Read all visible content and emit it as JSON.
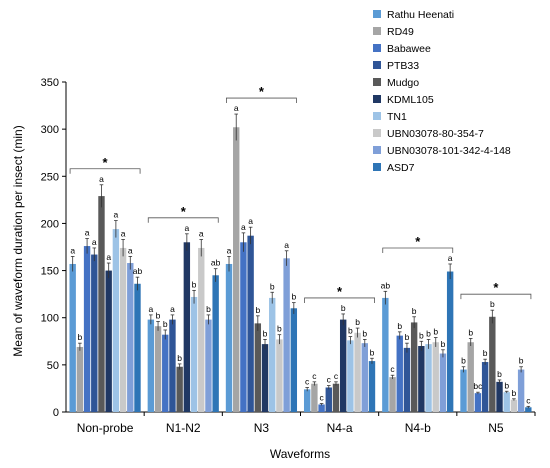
{
  "chart_data": {
    "type": "bar",
    "xlabel": "Waveforms",
    "ylabel": "Mean of waveform duration per insect (min)",
    "ylim": [
      0,
      350
    ],
    "yticks": [
      0,
      50,
      100,
      150,
      200,
      250,
      300,
      350
    ],
    "grid": false,
    "legend_position": "top-right",
    "significance_marker": "*",
    "categories": [
      "Non-probe",
      "N1-N2",
      "N3",
      "N4-a",
      "N4-b",
      "N5"
    ],
    "series": [
      {
        "name": "Rathu Heenati",
        "color": "#5b9bd5",
        "values": [
          157,
          98,
          157,
          24,
          121,
          45
        ],
        "errors": [
          8,
          5,
          8,
          2,
          7,
          3
        ],
        "letters": [
          "a",
          "a",
          "a",
          "c",
          "ab",
          "b"
        ]
      },
      {
        "name": "RD49",
        "color": "#a5a5a5",
        "values": [
          69,
          91,
          302,
          30,
          37,
          74
        ],
        "errors": [
          4,
          5,
          14,
          2,
          2,
          4
        ],
        "letters": [
          "b",
          "b",
          "a",
          "c",
          "c",
          "b"
        ]
      },
      {
        "name": "Babawee",
        "color": "#4472c4",
        "values": [
          176,
          82,
          180,
          8,
          81,
          20
        ],
        "errors": [
          8,
          5,
          10,
          1,
          4,
          1
        ],
        "letters": [
          "a",
          "b",
          "a",
          "c",
          "b",
          "bc"
        ]
      },
      {
        "name": "PTB33",
        "color": "#2f5597",
        "values": [
          167,
          98,
          187,
          26,
          68,
          53
        ],
        "errors": [
          7,
          5,
          9,
          2,
          5,
          3
        ],
        "letters": [
          "a",
          "a",
          "a",
          "c",
          "b",
          "b"
        ]
      },
      {
        "name": "Mudgo",
        "color": "#595959",
        "values": [
          229,
          48,
          94,
          30,
          95,
          101
        ],
        "errors": [
          12,
          3,
          8,
          2,
          6,
          7
        ],
        "letters": [
          "a",
          "b",
          "b",
          "c",
          "b",
          "b"
        ]
      },
      {
        "name": "KDML105",
        "color": "#203864",
        "values": [
          150,
          180,
          72,
          98,
          70,
          32
        ],
        "errors": [
          8,
          9,
          5,
          6,
          5,
          2
        ],
        "letters": [
          "a",
          "a",
          "b",
          "b",
          "b",
          "b"
        ]
      },
      {
        "name": "TN1",
        "color": "#9dc3e6",
        "values": [
          194,
          122,
          121,
          76,
          72,
          21
        ],
        "errors": [
          9,
          7,
          6,
          4,
          5,
          1
        ],
        "letters": [
          "a",
          "b",
          "b",
          "b",
          "b",
          "b"
        ]
      },
      {
        "name": "UBN03078-80-354-7",
        "color": "#c9c9c9",
        "values": [
          174,
          174,
          77,
          84,
          74,
          13
        ],
        "errors": [
          9,
          9,
          5,
          5,
          5,
          1
        ],
        "letters": [
          "a",
          "a",
          "b",
          "b",
          "b",
          "b"
        ]
      },
      {
        "name": "UBN03078-101-342-4-148",
        "color": "#7f9fd8",
        "values": [
          158,
          98,
          163,
          73,
          62,
          45
        ],
        "errors": [
          7,
          5,
          8,
          4,
          4,
          3
        ],
        "letters": [
          "a",
          "b",
          "a",
          "b",
          "b",
          "b"
        ]
      },
      {
        "name": "ASD7",
        "color": "#2e75b6",
        "values": [
          136,
          145,
          110,
          54,
          149,
          5
        ],
        "errors": [
          7,
          7,
          6,
          3,
          8,
          1
        ],
        "letters": [
          "ab",
          "ab",
          "b",
          "b",
          "a",
          "c"
        ]
      }
    ]
  }
}
